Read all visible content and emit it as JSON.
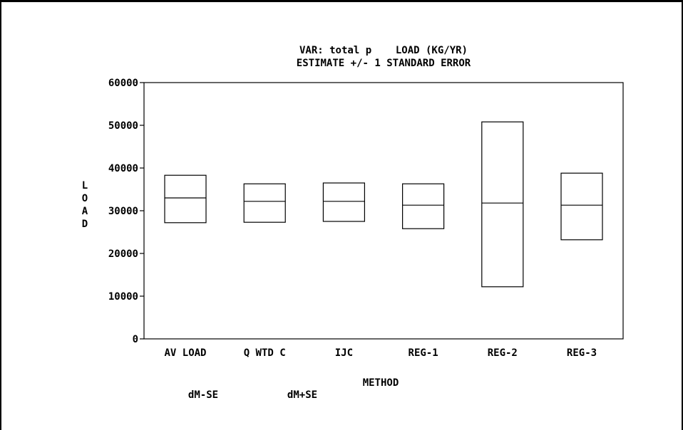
{
  "chart_data": {
    "type": "box",
    "title_line1": "VAR: total p    LOAD (KG/YR)",
    "title_line2": "ESTIMATE +/- 1 STANDARD ERROR",
    "xlabel": "METHOD",
    "ylabel_letters": [
      "L",
      "O",
      "A",
      "D"
    ],
    "ylim": [
      0,
      60000
    ],
    "y_ticks": [
      0,
      10000,
      20000,
      30000,
      40000,
      50000,
      60000
    ],
    "y_tick_labels": [
      "0",
      "10000",
      "20000",
      "30000",
      "40000",
      "50000",
      "60000"
    ],
    "categories": [
      "AV LOAD",
      "Q WTD C",
      "IJC",
      "REG-1",
      "REG-2",
      "REG-3"
    ],
    "series": [
      {
        "name": "dM-SE",
        "values": [
          27200,
          27300,
          27500,
          25800,
          12200,
          23200
        ]
      },
      {
        "name": "estimate",
        "values": [
          33000,
          32200,
          32200,
          31300,
          31800,
          31300
        ]
      },
      {
        "name": "dM+SE",
        "values": [
          38300,
          36300,
          36500,
          36300,
          50800,
          38800
        ]
      }
    ],
    "legend": [
      "dM-SE",
      "dM+SE"
    ],
    "grid": false
  }
}
